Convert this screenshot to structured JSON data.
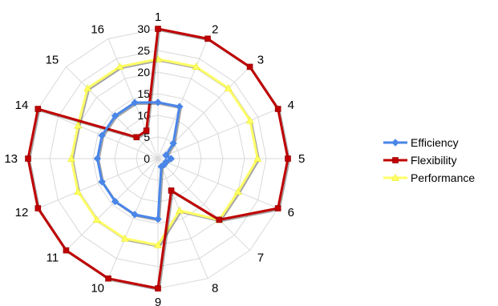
{
  "chart_data": {
    "type": "radar",
    "categories": [
      "1",
      "2",
      "3",
      "4",
      "5",
      "6",
      "7",
      "8",
      "9",
      "10",
      "11",
      "12",
      "13",
      "14",
      "15",
      "16"
    ],
    "rlim": [
      0,
      30
    ],
    "ticks": [
      "0",
      "5",
      "10",
      "15",
      "20",
      "25",
      "30"
    ],
    "tick_values": [
      0,
      5,
      10,
      15,
      20,
      25,
      30
    ],
    "grid": true,
    "legend_position": "right",
    "series": [
      {
        "name": "Efficiency",
        "color": "#4a86e8",
        "marker": "diamond",
        "values": [
          13,
          13,
          5,
          2,
          3,
          2,
          2,
          2,
          14,
          14,
          14,
          14,
          14,
          14,
          14,
          14
        ]
      },
      {
        "name": "Flexibility",
        "color": "#c00000",
        "marker": "square",
        "values": [
          30,
          30,
          30,
          30,
          30,
          30,
          20,
          8,
          30,
          30,
          30,
          30,
          30,
          30,
          7,
          7
        ]
      },
      {
        "name": "Performance",
        "color": "#ffff66",
        "marker": "triangle",
        "values": [
          23,
          23,
          23,
          23,
          23,
          20,
          20,
          13,
          20,
          20,
          20,
          20,
          20,
          20,
          23,
          23
        ]
      }
    ]
  }
}
